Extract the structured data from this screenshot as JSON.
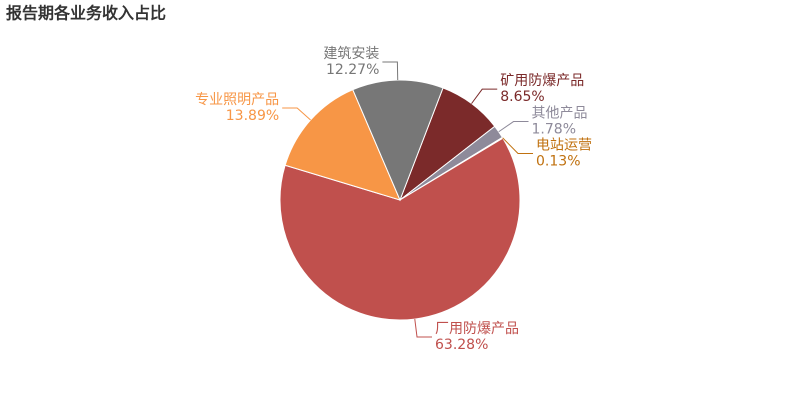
{
  "chart_data": {
    "type": "pie",
    "title": "报告期各业务收入占比",
    "categories": [
      "矿用防爆产品",
      "其他产品",
      "电站运营",
      "厂用防爆产品",
      "专业照明产品",
      "建筑安装"
    ],
    "values": [
      8.65,
      1.78,
      0.13,
      63.28,
      13.89,
      12.27
    ],
    "value_labels": [
      "8.65%",
      "1.78%",
      "0.13%",
      "63.28%",
      "13.89%",
      "12.27%"
    ],
    "colors": [
      "#7b2a2a",
      "#8e8a9a",
      "#c0710f",
      "#c0504d",
      "#f79646",
      "#777777"
    ]
  }
}
